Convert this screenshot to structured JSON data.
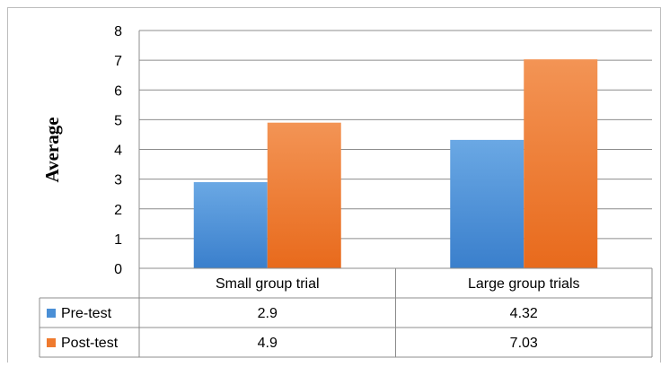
{
  "chart_data": {
    "type": "bar",
    "title": "",
    "xlabel": "",
    "ylabel": "Average",
    "ylim": [
      0,
      8
    ],
    "yticks": [
      "0",
      "1",
      "2",
      "3",
      "4",
      "5",
      "6",
      "7",
      "8"
    ],
    "categories": [
      "Small group trial",
      "Large group trials"
    ],
    "series": [
      {
        "name": "Pre-test",
        "values": [
          2.9,
          4.32
        ],
        "display": [
          "2.9",
          "4.32"
        ],
        "color": "#4a8fd6"
      },
      {
        "name": "Post-test",
        "values": [
          4.9,
          7.03
        ],
        "display": [
          "4.9",
          "7.03"
        ],
        "color": "#ef7a2e"
      }
    ],
    "grid": true,
    "legend": "data-table"
  }
}
